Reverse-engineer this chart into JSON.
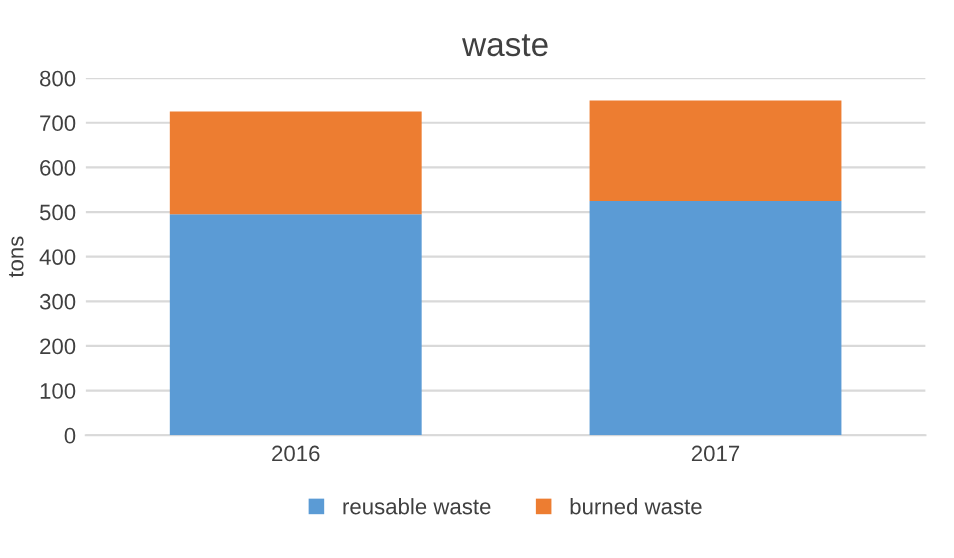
{
  "chart_data": {
    "type": "bar",
    "stacked": true,
    "title": "waste",
    "ylabel": "tons",
    "categories": [
      "2016",
      "2017"
    ],
    "series": [
      {
        "name": "reusable waste",
        "color": "#5b9bd5",
        "values": [
          495,
          525
        ]
      },
      {
        "name": "burned waste",
        "color": "#ed7d31",
        "values": [
          230,
          225
        ]
      }
    ],
    "ylim": [
      0,
      800
    ],
    "yticks": [
      0,
      100,
      200,
      300,
      400,
      500,
      600,
      700,
      800
    ],
    "grid": "y",
    "legend": "bottom"
  }
}
